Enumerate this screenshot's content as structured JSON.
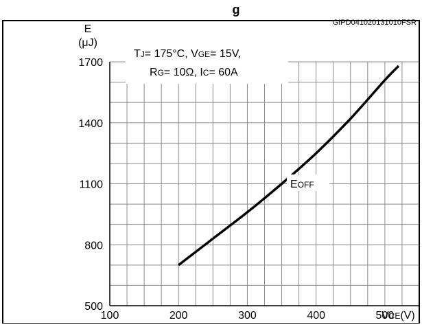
{
  "chart_data": {
    "type": "line",
    "title_fragment": "g",
    "figure_id": "GIPD041020131010FSR",
    "y_axis": {
      "symbol": "E",
      "unit": "(μJ)",
      "min": 500,
      "max": 1700,
      "ticks": [
        500,
        800,
        1100,
        1400,
        1700
      ]
    },
    "x_axis": {
      "symbol": "V",
      "subscript": "CE",
      "unit": "(V)",
      "min": 100,
      "max": 550,
      "ticks": [
        100,
        200,
        300,
        400,
        500
      ]
    },
    "conditions": {
      "line1": [
        {
          "text": "T",
          "sub": false
        },
        {
          "text": "J",
          "sub": true
        },
        {
          "text": "= 175°C, V",
          "sub": false
        },
        {
          "text": "GE",
          "sub": true
        },
        {
          "text": "= 15V,",
          "sub": false
        }
      ],
      "line2": [
        {
          "text": "R",
          "sub": false
        },
        {
          "text": "G",
          "sub": true
        },
        {
          "text": "= 10Ω, I",
          "sub": false
        },
        {
          "text": "C",
          "sub": true
        },
        {
          "text": "= 60A",
          "sub": false
        }
      ]
    },
    "series": [
      {
        "name_main": "E",
        "name_sub": "OFF",
        "x": [
          200,
          250,
          300,
          350,
          400,
          450,
          500,
          520
        ],
        "y": [
          700,
          830,
          960,
          1100,
          1250,
          1420,
          1610,
          1680
        ]
      }
    ],
    "grid": true,
    "line_color": "#000000"
  }
}
